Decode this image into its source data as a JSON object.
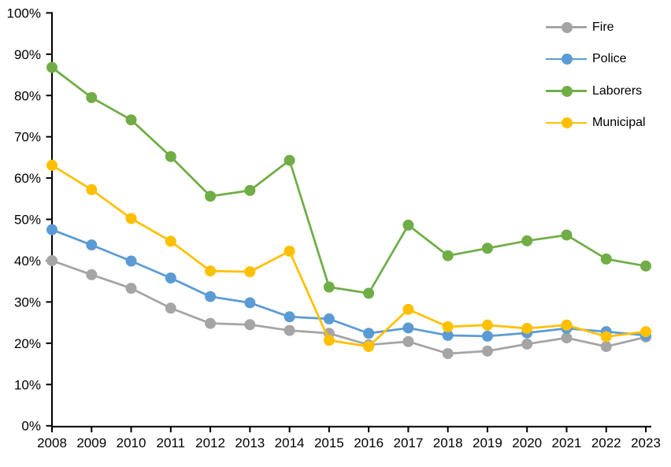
{
  "chart_data": {
    "type": "line",
    "title": "",
    "xlabel": "",
    "ylabel": "",
    "categories": [
      "2008",
      "2009",
      "2010",
      "2011",
      "2012",
      "2013",
      "2014",
      "2015",
      "2016",
      "2017",
      "2018",
      "2019",
      "2020",
      "2021",
      "2022",
      "2023"
    ],
    "y_ticks": [
      "0%",
      "10%",
      "20%",
      "30%",
      "40%",
      "50%",
      "60%",
      "70%",
      "80%",
      "90%",
      "100%"
    ],
    "ylim": [
      0,
      100
    ],
    "grid": false,
    "legend_position": "top-right-inside",
    "background": "#FFFFFF",
    "axis_color": "#000000",
    "series": [
      {
        "name": "Fire",
        "color": "#A5A5A5",
        "values": [
          40.0,
          36.6,
          33.3,
          28.5,
          24.8,
          24.5,
          23.1,
          22.4,
          19.6,
          20.4,
          17.5,
          18.1,
          19.8,
          21.3,
          19.2,
          21.5
        ]
      },
      {
        "name": "Police",
        "color": "#5B9BD5",
        "values": [
          47.5,
          43.8,
          39.9,
          35.8,
          31.3,
          29.8,
          26.4,
          25.9,
          22.4,
          23.7,
          21.9,
          21.7,
          22.5,
          23.6,
          22.8,
          21.9
        ]
      },
      {
        "name": "Laborers",
        "color": "#70AD47",
        "values": [
          86.8,
          79.5,
          74.1,
          65.2,
          55.6,
          57.0,
          64.3,
          33.6,
          32.1,
          48.6,
          41.2,
          43.0,
          44.8,
          46.2,
          40.4,
          38.7
        ]
      },
      {
        "name": "Municipal",
        "color": "#FFC000",
        "values": [
          63.1,
          57.2,
          50.2,
          44.7,
          37.5,
          37.3,
          42.3,
          20.7,
          19.2,
          28.2,
          24.0,
          24.4,
          23.6,
          24.4,
          21.6,
          22.8
        ]
      }
    ]
  }
}
